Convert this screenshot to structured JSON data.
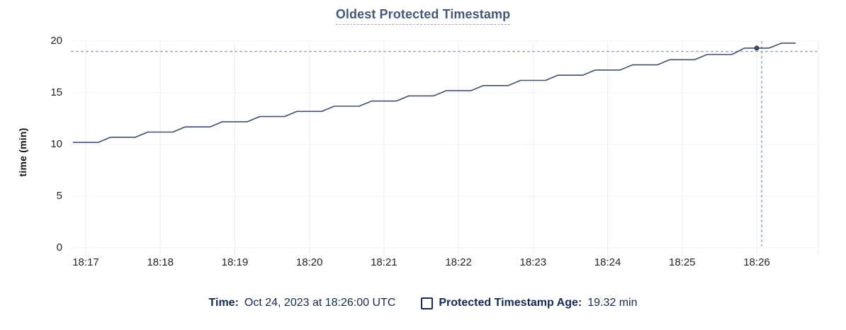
{
  "title": "Oldest Protected Timestamp",
  "y_axis_label": "time (min)",
  "legend": {
    "time_label": "Time:",
    "time_value": "Oct 24, 2023 at 18:26:00 UTC",
    "series_label": "Protected Timestamp Age:",
    "series_value": "19.32 min"
  },
  "colors": {
    "line": "#42506b",
    "point": "#3a4a66",
    "title": "#475872",
    "title_underline": "#9aa9bb",
    "legend_text": "#152a4d",
    "axis_text": "#242424",
    "grid_horizontal": "#f0f0f0",
    "grid_vertical": "#ececec",
    "crosshair": "#94a5b8"
  },
  "chart_data": {
    "type": "line",
    "title": "Oldest Protected Timestamp",
    "xlabel": "",
    "ylabel": "time (min)",
    "ylim": [
      0,
      20
    ],
    "grid": true,
    "legend_position": "bottom",
    "x_unit_note": "seconds since 18:16:50 UTC; plot spans ~18:16:48 to ~18:26:50",
    "x_domain": [
      -2,
      599
    ],
    "y_ticks": [
      0,
      5,
      10,
      15,
      20
    ],
    "x_ticks": {
      "t": [
        10,
        70,
        130,
        190,
        250,
        310,
        370,
        430,
        490,
        550
      ],
      "labels": [
        "18:17",
        "18:18",
        "18:19",
        "18:20",
        "18:21",
        "18:22",
        "18:23",
        "18:24",
        "18:25",
        "18:26"
      ]
    },
    "series": [
      {
        "name": "Protected Timestamp Age",
        "unit": "min",
        "points": [
          [
            0,
            10.2
          ],
          [
            20,
            10.2
          ],
          [
            30,
            10.7
          ],
          [
            50,
            10.7
          ],
          [
            60,
            11.2
          ],
          [
            80,
            11.2
          ],
          [
            90,
            11.7
          ],
          [
            110,
            11.7
          ],
          [
            120,
            12.2
          ],
          [
            140,
            12.2
          ],
          [
            150,
            12.7
          ],
          [
            170,
            12.7
          ],
          [
            180,
            13.2
          ],
          [
            200,
            13.2
          ],
          [
            210,
            13.7
          ],
          [
            230,
            13.7
          ],
          [
            240,
            14.2
          ],
          [
            260,
            14.2
          ],
          [
            270,
            14.7
          ],
          [
            290,
            14.7
          ],
          [
            300,
            15.2
          ],
          [
            320,
            15.2
          ],
          [
            330,
            15.7
          ],
          [
            350,
            15.7
          ],
          [
            360,
            16.2
          ],
          [
            380,
            16.2
          ],
          [
            390,
            16.7
          ],
          [
            410,
            16.7
          ],
          [
            420,
            17.2
          ],
          [
            440,
            17.2
          ],
          [
            450,
            17.7
          ],
          [
            470,
            17.7
          ],
          [
            480,
            18.2
          ],
          [
            500,
            18.2
          ],
          [
            510,
            18.7
          ],
          [
            530,
            18.7
          ],
          [
            540,
            19.32
          ],
          [
            560,
            19.32
          ],
          [
            570,
            19.8
          ],
          [
            581,
            19.8
          ]
        ]
      }
    ],
    "crosshair": {
      "t": 554,
      "value": 19.0
    },
    "highlight_point": {
      "t": 550,
      "value": 19.32,
      "time_label": "Oct 24, 2023 at 18:26:00 UTC"
    }
  }
}
